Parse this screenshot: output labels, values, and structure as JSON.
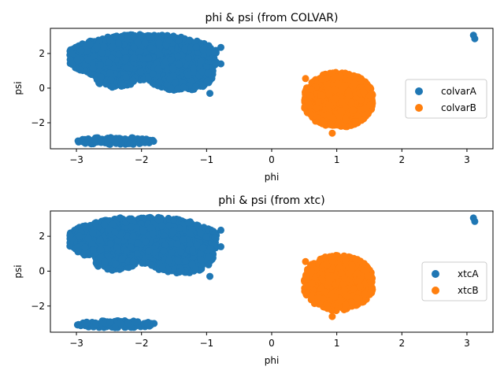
{
  "colors": {
    "seriesA": "#1f77b4",
    "seriesB": "#ff7f0e"
  },
  "chart_data": [
    {
      "type": "scatter",
      "title": "phi & psi (from COLVAR)",
      "xlabel": "phi",
      "ylabel": "psi",
      "xlim": [
        -3.4,
        3.4
      ],
      "ylim": [
        -3.5,
        3.45
      ],
      "xticks": [
        "-3",
        "-2",
        "-1",
        "0",
        "1",
        "2",
        "3"
      ],
      "yticks": [
        "-2",
        "0",
        "2"
      ],
      "legend": "center-right",
      "series": [
        {
          "name": "colvarA",
          "clusters": [
            {
              "x": [
                -3.1,
                -0.85
              ],
              "y": [
                0.5,
                3.05
              ]
            },
            {
              "x": [
                -1.9,
                -0.9
              ],
              "y": [
                -0.1,
                1.8
              ]
            },
            {
              "x": [
                -2.7,
                -2.1
              ],
              "y": [
                0.1,
                0.9
              ]
            },
            {
              "x": [
                -3.0,
                -1.8
              ],
              "y": [
                -3.25,
                -2.85
              ]
            }
          ],
          "points": [
            {
              "x": -0.78,
              "y": 2.35
            },
            {
              "x": -0.78,
              "y": 1.4
            },
            {
              "x": -0.95,
              "y": -0.3
            },
            {
              "x": -2.45,
              "y": 0.05
            },
            {
              "x": 3.1,
              "y": 3.05
            },
            {
              "x": 3.12,
              "y": 2.85
            }
          ]
        },
        {
          "name": "colvarB",
          "clusters": [
            {
              "x": [
                0.5,
                1.55
              ],
              "y": [
                -2.2,
                0.85
              ]
            }
          ],
          "points": [
            {
              "x": 0.93,
              "y": -2.6
            },
            {
              "x": 0.52,
              "y": 0.55
            },
            {
              "x": 0.93,
              "y": 0.85
            }
          ]
        }
      ]
    },
    {
      "type": "scatter",
      "title": "phi & psi (from xtc)",
      "xlabel": "phi",
      "ylabel": "psi",
      "xlim": [
        -3.4,
        3.4
      ],
      "ylim": [
        -3.5,
        3.45
      ],
      "xticks": [
        "-3",
        "-2",
        "-1",
        "0",
        "1",
        "2",
        "3"
      ],
      "yticks": [
        "-2",
        "0",
        "2"
      ],
      "legend": "center-right",
      "series": [
        {
          "name": "xtcA",
          "clusters": [
            {
              "x": [
                -3.1,
                -0.85
              ],
              "y": [
                0.5,
                3.05
              ]
            },
            {
              "x": [
                -1.9,
                -0.9
              ],
              "y": [
                -0.1,
                1.8
              ]
            },
            {
              "x": [
                -2.7,
                -2.1
              ],
              "y": [
                0.1,
                0.9
              ]
            },
            {
              "x": [
                -3.0,
                -1.8
              ],
              "y": [
                -3.25,
                -2.85
              ]
            }
          ],
          "points": [
            {
              "x": -0.78,
              "y": 2.35
            },
            {
              "x": -0.78,
              "y": 1.4
            },
            {
              "x": -0.95,
              "y": -0.3
            },
            {
              "x": -2.45,
              "y": 0.05
            },
            {
              "x": 3.1,
              "y": 3.05
            },
            {
              "x": 3.12,
              "y": 2.85
            }
          ]
        },
        {
          "name": "xtcB",
          "clusters": [
            {
              "x": [
                0.5,
                1.55
              ],
              "y": [
                -2.2,
                0.85
              ]
            }
          ],
          "points": [
            {
              "x": 0.93,
              "y": -2.6
            },
            {
              "x": 0.52,
              "y": 0.55
            },
            {
              "x": 0.93,
              "y": 0.85
            }
          ]
        }
      ]
    }
  ]
}
